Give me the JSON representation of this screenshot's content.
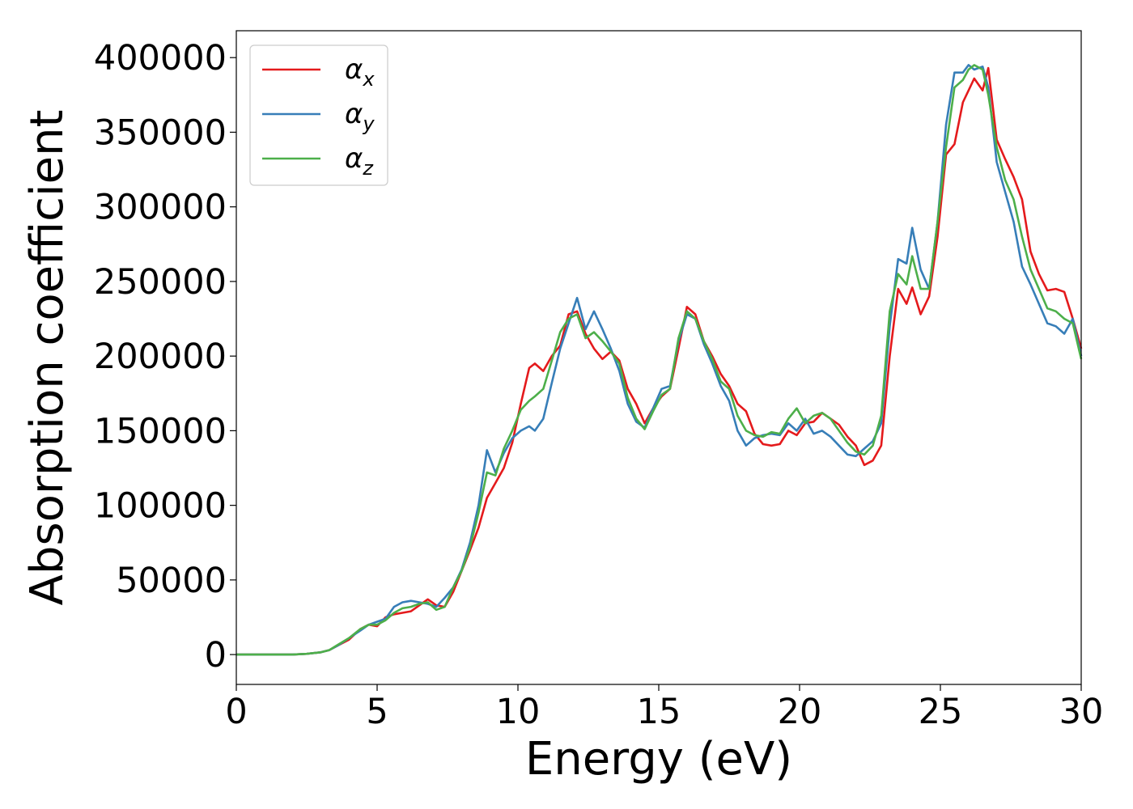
{
  "chart_data": {
    "type": "line",
    "xlabel": "Energy (eV)",
    "ylabel": "Absorption coefficient",
    "xlim": [
      0,
      30
    ],
    "ylim": [
      -20000,
      418000
    ],
    "xticks": [
      0,
      5,
      10,
      15,
      20,
      25,
      30
    ],
    "xtick_labels": [
      "0",
      "5",
      "10",
      "15",
      "20",
      "25",
      "30"
    ],
    "yticks": [
      0,
      50000,
      100000,
      150000,
      200000,
      250000,
      300000,
      350000,
      400000
    ],
    "ytick_labels": [
      "0",
      "50000",
      "100000",
      "150000",
      "200000",
      "250000",
      "300000",
      "350000",
      "400000"
    ],
    "grid": false,
    "legend_position": "top-left",
    "series": [
      {
        "name": "α",
        "sub": "x",
        "color": "#e41a1c",
        "x": [
          0,
          1,
          2,
          2.5,
          3,
          3.3,
          3.6,
          4.0,
          4.4,
          4.7,
          5.0,
          5.3,
          5.6,
          5.9,
          6.2,
          6.5,
          6.8,
          7.1,
          7.4,
          7.7,
          8.0,
          8.3,
          8.6,
          8.9,
          9.2,
          9.5,
          9.8,
          10.1,
          10.4,
          10.6,
          10.9,
          11.2,
          11.5,
          11.8,
          12.1,
          12.4,
          12.7,
          13.0,
          13.3,
          13.6,
          13.9,
          14.2,
          14.5,
          14.8,
          15.1,
          15.4,
          15.7,
          16.0,
          16.3,
          16.6,
          16.9,
          17.2,
          17.5,
          17.8,
          18.1,
          18.4,
          18.7,
          19.0,
          19.3,
          19.6,
          19.9,
          20.2,
          20.5,
          20.8,
          21.1,
          21.4,
          21.7,
          22.0,
          22.3,
          22.6,
          22.9,
          23.2,
          23.5,
          23.8,
          24.0,
          24.3,
          24.6,
          24.9,
          25.2,
          25.5,
          25.8,
          26.0,
          26.2,
          26.5,
          26.7,
          27.0,
          27.3,
          27.6,
          27.9,
          28.2,
          28.5,
          28.8,
          29.1,
          29.4,
          29.7,
          30.0
        ],
        "y": [
          0,
          0,
          0,
          500,
          1500,
          3000,
          6000,
          10000,
          17000,
          20000,
          19000,
          25000,
          27000,
          28000,
          29000,
          33000,
          37000,
          33000,
          32000,
          42000,
          56000,
          70000,
          85000,
          105000,
          115000,
          125000,
          142000,
          168000,
          192000,
          195000,
          190000,
          200000,
          207000,
          228000,
          230000,
          215000,
          205000,
          198000,
          203000,
          197000,
          178000,
          168000,
          155000,
          165000,
          173000,
          178000,
          205000,
          233000,
          228000,
          210000,
          200000,
          188000,
          180000,
          168000,
          163000,
          148000,
          141000,
          140000,
          141000,
          150000,
          147000,
          155000,
          156000,
          162000,
          158000,
          154000,
          146000,
          140000,
          127000,
          130000,
          140000,
          200000,
          245000,
          235000,
          246000,
          228000,
          240000,
          280000,
          335000,
          342000,
          370000,
          378000,
          386000,
          378000,
          393000,
          345000,
          332000,
          320000,
          305000,
          270000,
          255000,
          244000,
          245000,
          243000,
          225000,
          205000
        ]
      },
      {
        "name": "α",
        "sub": "y",
        "color": "#377eb8",
        "x": [
          0,
          1,
          2,
          2.5,
          3,
          3.3,
          3.6,
          4.0,
          4.4,
          4.7,
          5.0,
          5.3,
          5.6,
          5.9,
          6.2,
          6.5,
          6.8,
          7.1,
          7.4,
          7.7,
          8.0,
          8.3,
          8.6,
          8.9,
          9.2,
          9.5,
          9.8,
          10.1,
          10.4,
          10.6,
          10.9,
          11.2,
          11.5,
          11.8,
          12.1,
          12.4,
          12.7,
          13.0,
          13.3,
          13.6,
          13.9,
          14.2,
          14.5,
          14.8,
          15.1,
          15.4,
          15.7,
          16.0,
          16.3,
          16.6,
          16.9,
          17.2,
          17.5,
          17.8,
          18.1,
          18.4,
          18.7,
          19.0,
          19.3,
          19.6,
          19.9,
          20.2,
          20.5,
          20.8,
          21.1,
          21.4,
          21.7,
          22.0,
          22.3,
          22.6,
          22.9,
          23.2,
          23.5,
          23.8,
          24.0,
          24.3,
          24.6,
          24.9,
          25.2,
          25.5,
          25.8,
          26.0,
          26.2,
          26.5,
          26.7,
          27.0,
          27.3,
          27.6,
          27.9,
          28.2,
          28.5,
          28.8,
          29.1,
          29.4,
          29.7,
          30.0
        ],
        "y": [
          0,
          0,
          0,
          500,
          1500,
          3000,
          6000,
          11000,
          16000,
          20000,
          22000,
          24000,
          32000,
          35000,
          36000,
          35000,
          34000,
          32000,
          38000,
          45000,
          57000,
          75000,
          100000,
          137000,
          122000,
          135000,
          145000,
          150000,
          153000,
          150000,
          158000,
          182000,
          205000,
          222000,
          239000,
          218000,
          230000,
          218000,
          205000,
          190000,
          168000,
          156000,
          152000,
          165000,
          178000,
          180000,
          210000,
          228000,
          225000,
          208000,
          195000,
          180000,
          170000,
          150000,
          140000,
          145000,
          147000,
          148000,
          147000,
          155000,
          150000,
          158000,
          148000,
          150000,
          146000,
          140000,
          134000,
          133000,
          138000,
          143000,
          155000,
          220000,
          265000,
          262000,
          286000,
          258000,
          245000,
          290000,
          355000,
          390000,
          390000,
          395000,
          392000,
          394000,
          380000,
          330000,
          310000,
          290000,
          260000,
          248000,
          235000,
          222000,
          220000,
          215000,
          225000,
          200000
        ]
      },
      {
        "name": "α",
        "sub": "z",
        "color": "#4daf4a",
        "x": [
          0,
          1,
          2,
          2.5,
          3,
          3.3,
          3.6,
          4.0,
          4.4,
          4.7,
          5.0,
          5.3,
          5.6,
          5.9,
          6.2,
          6.5,
          6.8,
          7.1,
          7.4,
          7.7,
          8.0,
          8.3,
          8.6,
          8.9,
          9.2,
          9.5,
          9.8,
          10.1,
          10.4,
          10.6,
          10.9,
          11.2,
          11.5,
          11.8,
          12.1,
          12.4,
          12.7,
          13.0,
          13.3,
          13.6,
          13.9,
          14.2,
          14.5,
          14.8,
          15.1,
          15.4,
          15.7,
          16.0,
          16.3,
          16.6,
          16.9,
          17.2,
          17.5,
          17.8,
          18.1,
          18.4,
          18.7,
          19.0,
          19.3,
          19.6,
          19.9,
          20.2,
          20.5,
          20.8,
          21.1,
          21.4,
          21.7,
          22.0,
          22.3,
          22.6,
          22.9,
          23.2,
          23.5,
          23.8,
          24.0,
          24.3,
          24.6,
          24.9,
          25.2,
          25.5,
          25.8,
          26.0,
          26.2,
          26.5,
          26.7,
          27.0,
          27.3,
          27.6,
          27.9,
          28.2,
          28.5,
          28.8,
          29.1,
          29.4,
          29.7,
          30.0
        ],
        "y": [
          0,
          0,
          0,
          500,
          1500,
          3000,
          6500,
          11000,
          17000,
          20000,
          20000,
          23000,
          28000,
          31000,
          32000,
          34000,
          35000,
          30000,
          32000,
          45000,
          56000,
          72000,
          95000,
          122000,
          120000,
          138000,
          150000,
          164000,
          170000,
          173000,
          178000,
          197000,
          216000,
          225000,
          228000,
          212000,
          216000,
          210000,
          203000,
          195000,
          172000,
          158000,
          151000,
          163000,
          174000,
          178000,
          212000,
          230000,
          225000,
          210000,
          198000,
          183000,
          178000,
          160000,
          150000,
          147000,
          146000,
          149000,
          148000,
          158000,
          165000,
          155000,
          160000,
          162000,
          158000,
          150000,
          142000,
          136000,
          134000,
          140000,
          160000,
          230000,
          255000,
          248000,
          267000,
          245000,
          245000,
          290000,
          340000,
          380000,
          385000,
          392000,
          395000,
          392000,
          375000,
          340000,
          318000,
          305000,
          280000,
          258000,
          245000,
          232000,
          230000,
          225000,
          222000,
          198000
        ]
      }
    ]
  }
}
